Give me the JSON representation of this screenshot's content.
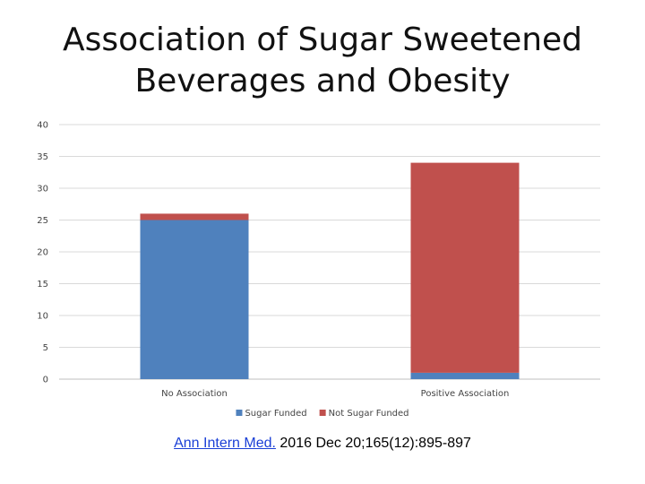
{
  "slide": {
    "title_line1": "Association of Sugar Sweetened",
    "title_line2": "Beverages and Obesity"
  },
  "citation": {
    "link_text": "Ann Intern Med.",
    "rest_text": " 2016 Dec 20;165(12):895-897"
  },
  "chart_data": {
    "type": "bar",
    "stacked": true,
    "categories": [
      "No Association",
      "Positive Association"
    ],
    "series": [
      {
        "name": "Sugar Funded",
        "values": [
          25,
          1
        ],
        "color": "#4f81bd"
      },
      {
        "name": "Not Sugar Funded",
        "values": [
          1,
          33
        ],
        "color": "#c0504d"
      }
    ],
    "ylim": [
      0,
      40
    ],
    "yticks": [
      0,
      5,
      10,
      15,
      20,
      25,
      30,
      35,
      40
    ],
    "grid": true,
    "legend_position": "bottom"
  }
}
